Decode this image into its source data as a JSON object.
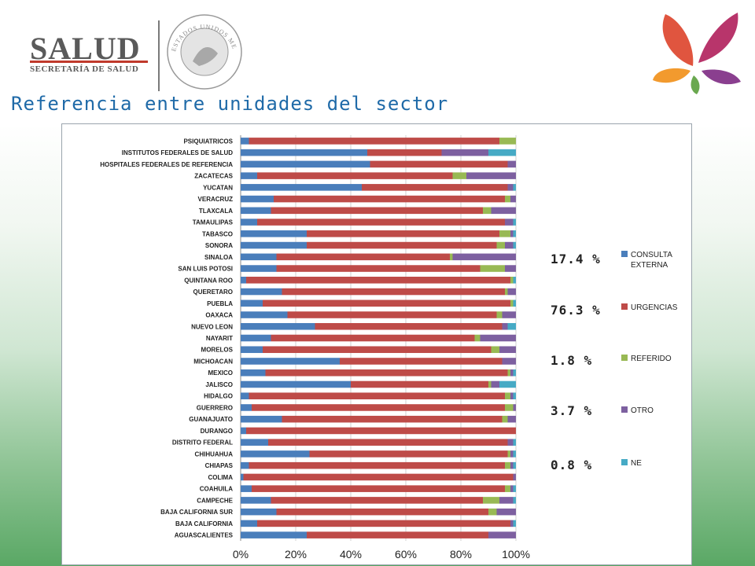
{
  "header": {
    "logo_name": "SALUD",
    "logo_subtitle": "SECRETARÍA DE SALUD",
    "seal_text": "ESTADOS UNIDOS MEXICANOS"
  },
  "slide": {
    "title": "Referencia entre unidades del sector"
  },
  "percent_labels": [
    {
      "value": "17.4 %"
    },
    {
      "value": "76.3 %"
    },
    {
      "value": "1.8 %"
    },
    {
      "value": "3.7 %"
    },
    {
      "value": "0.8 %"
    }
  ],
  "chart_data": {
    "type": "bar",
    "orientation": "horizontal",
    "stacked": "percent",
    "xlim": [
      0,
      100
    ],
    "x_ticks": [
      "0%",
      "20%",
      "40%",
      "60%",
      "80%",
      "100%"
    ],
    "legend_position": "right",
    "categories": [
      "PSIQUIATRICOS",
      "INSTITUTOS FEDERALES DE SALUD",
      "HOSPITALES FEDERALES DE REFERENCIA",
      "ZACATECAS",
      "YUCATAN",
      "VERACRUZ",
      "TLAXCALA",
      "TAMAULIPAS",
      "TABASCO",
      "SONORA",
      "SINALOA",
      "SAN LUIS POTOSI",
      "QUINTANA ROO",
      "QUERETARO",
      "PUEBLA",
      "OAXACA",
      "NUEVO LEON",
      "NAYARIT",
      "MORELOS",
      "MICHOACAN",
      "MEXICO",
      "JALISCO",
      "HIDALGO",
      "GUERRERO",
      "GUANAJUATO",
      "DURANGO",
      "DISTRITO FEDERAL",
      "CHIHUAHUA",
      "CHIAPAS",
      "COLIMA",
      "COAHUILA",
      "CAMPECHE",
      "BAJA CALIFORNIA SUR",
      "BAJA CALIFORNIA",
      "AGUASCALIENTES"
    ],
    "series": [
      {
        "name": "CONSULTA EXTERNA",
        "color": "#4a7ebb",
        "values": [
          3,
          46,
          47,
          6,
          44,
          12,
          11,
          6,
          24,
          24,
          13,
          13,
          2,
          15,
          8,
          17,
          27,
          11,
          8,
          36,
          9,
          40,
          3,
          4,
          15,
          2,
          10,
          25,
          3,
          1,
          4,
          11,
          13,
          6,
          24
        ]
      },
      {
        "name": "URGENCIAS",
        "color": "#be4b48",
        "values": [
          91,
          27,
          50,
          71,
          53,
          84,
          77,
          90,
          70,
          69,
          63,
          74,
          96,
          81,
          90,
          76,
          68,
          74,
          83,
          59,
          88,
          50,
          93,
          92,
          80,
          98,
          87,
          72,
          93,
          98,
          92,
          77,
          77,
          92,
          66
        ]
      },
      {
        "name": "REFERIDO",
        "color": "#98b954",
        "values": [
          6,
          0,
          0,
          5,
          0,
          2,
          3,
          0,
          4,
          3,
          1,
          9,
          1,
          1,
          1,
          2,
          0,
          2,
          3,
          0,
          1,
          1,
          2,
          3,
          2,
          0,
          0,
          1,
          2,
          0,
          2,
          6,
          3,
          0,
          0
        ]
      },
      {
        "name": "OTRO",
        "color": "#7d60a0",
        "values": [
          0,
          17,
          3,
          18,
          2,
          2,
          9,
          3,
          1,
          3,
          23,
          4,
          0,
          3,
          0,
          5,
          2,
          13,
          6,
          5,
          1,
          3,
          1,
          1,
          3,
          0,
          2,
          1,
          1,
          1,
          1,
          5,
          7,
          1,
          10
        ]
      },
      {
        "name": "NE",
        "color": "#46aac5",
        "values": [
          0,
          10,
          0,
          0,
          1,
          0,
          0,
          1,
          1,
          1,
          0,
          0,
          1,
          0,
          1,
          0,
          3,
          0,
          0,
          0,
          1,
          6,
          1,
          0,
          0,
          0,
          1,
          1,
          1,
          0,
          1,
          1,
          0,
          1,
          0
        ]
      }
    ]
  }
}
